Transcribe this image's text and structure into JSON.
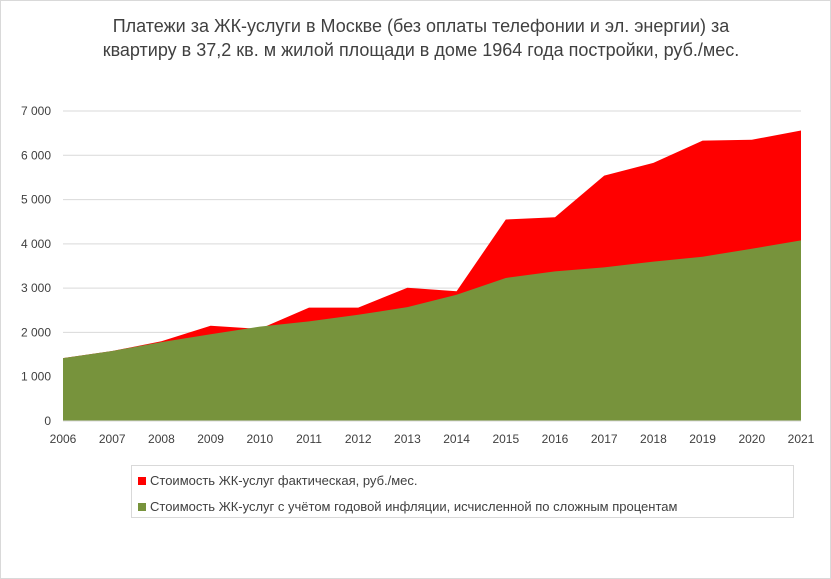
{
  "chart_data": {
    "type": "area",
    "title": "Платежи за ЖК-услуги в Москве (без оплаты телефонии и эл. энергии) за квартиру в 37,2 кв. м жилой площади в доме 1964 года постройки, руб./мес.",
    "title_lines": [
      "Платежи за ЖК-услуги в Москве (без оплаты телефонии и эл. энергии) за",
      "квартиру в 37,2 кв. м жилой площади в доме 1964 года постройки, руб./мес."
    ],
    "x": [
      "2006",
      "2007",
      "2008",
      "2009",
      "2010",
      "2011",
      "2012",
      "2013",
      "2014",
      "2015",
      "2016",
      "2017",
      "2018",
      "2019",
      "2020",
      "2021"
    ],
    "y_ticks": [
      "0",
      "1 000",
      "2 000",
      "3 000",
      "4 000",
      "5 000",
      "6 000",
      "7 000"
    ],
    "ylim": [
      0,
      7000
    ],
    "grid": true,
    "legend_position": "bottom",
    "series": [
      {
        "name": "Стоимость ЖК-услуг фактическая, руб./мес.",
        "color": "#ff0000",
        "values": [
          1420,
          1580,
          1800,
          2150,
          2080,
          2560,
          2560,
          3010,
          2930,
          4550,
          4600,
          5540,
          5830,
          6330,
          6350,
          6560
        ]
      },
      {
        "name": "Стоимость ЖК-услуг с учётом годовой инфляции, исчисленной по сложным процентам",
        "color": "#77933c",
        "values": [
          1420,
          1580,
          1780,
          1960,
          2130,
          2250,
          2400,
          2570,
          2850,
          3230,
          3380,
          3470,
          3600,
          3710,
          3890,
          4080
        ]
      }
    ]
  }
}
